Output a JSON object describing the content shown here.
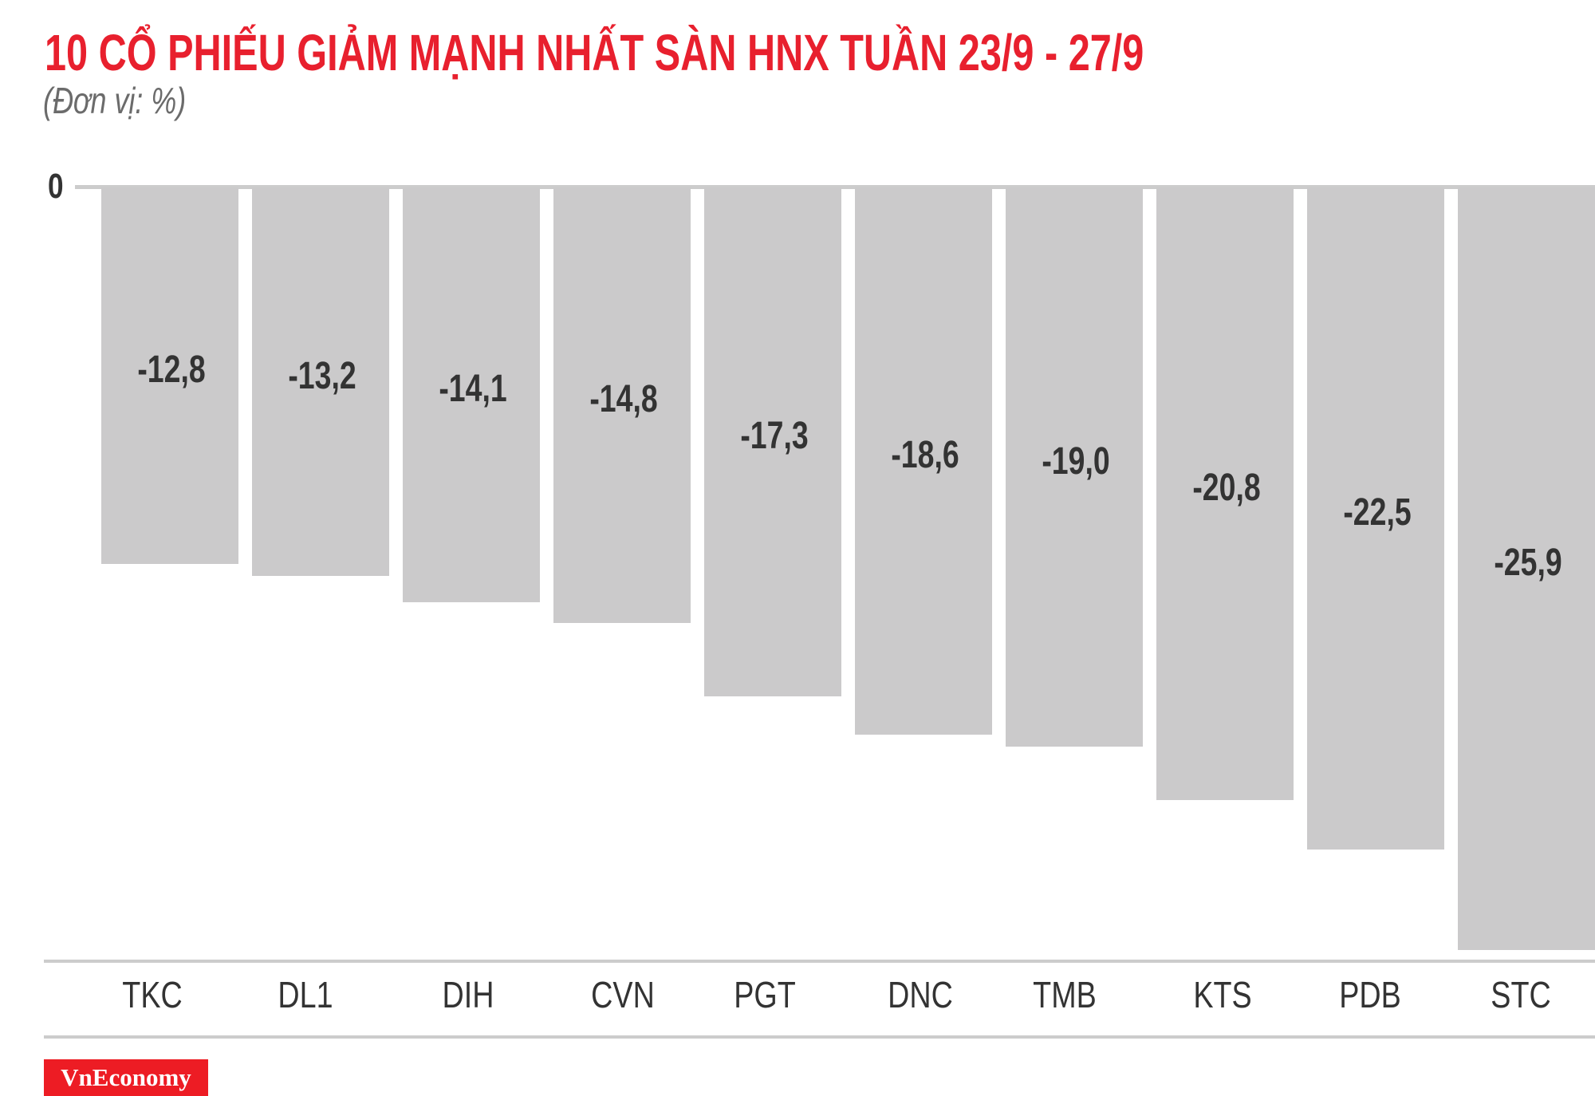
{
  "header": {
    "title": "10 CỔ PHIẾU GIẢM MẠNH NHẤT SÀN HNX TUẦN 23/9 - 27/9",
    "subtitle": "(Đơn vị: %)"
  },
  "axis": {
    "zero_label": "0"
  },
  "branding": {
    "logo_text": "VnEconomy"
  },
  "colors": {
    "title": "#E8202E",
    "bar": "#CBCACB",
    "axis_line": "#CCCCCC",
    "label_text": "#333333",
    "logo_bg": "#ED1C24"
  },
  "chart_data": {
    "type": "bar",
    "title": "10 CỔ PHIẾU GIẢM MẠNH NHẤT SÀN HNX TUẦN 23/9 - 27/9",
    "subtitle": "(Đơn vị: %)",
    "xlabel": "",
    "ylabel": "%",
    "categories": [
      "TKC",
      "DL1",
      "DIH",
      "CVN",
      "PGT",
      "DNC",
      "TMB",
      "KTS",
      "PDB",
      "STC"
    ],
    "values": [
      -12.8,
      -13.2,
      -14.1,
      -14.8,
      -17.3,
      -18.6,
      -19.0,
      -20.8,
      -22.5,
      -25.9
    ],
    "value_labels": [
      "-12,8",
      "-13,2",
      "-14,1",
      "-14,8",
      "-17,3",
      "-18,6",
      "-19,0",
      "-20,8",
      "-22,5",
      "-25,9"
    ],
    "y_ticks": [
      "0"
    ],
    "ylim": [
      -26,
      0
    ],
    "grid": false,
    "legend": null
  }
}
